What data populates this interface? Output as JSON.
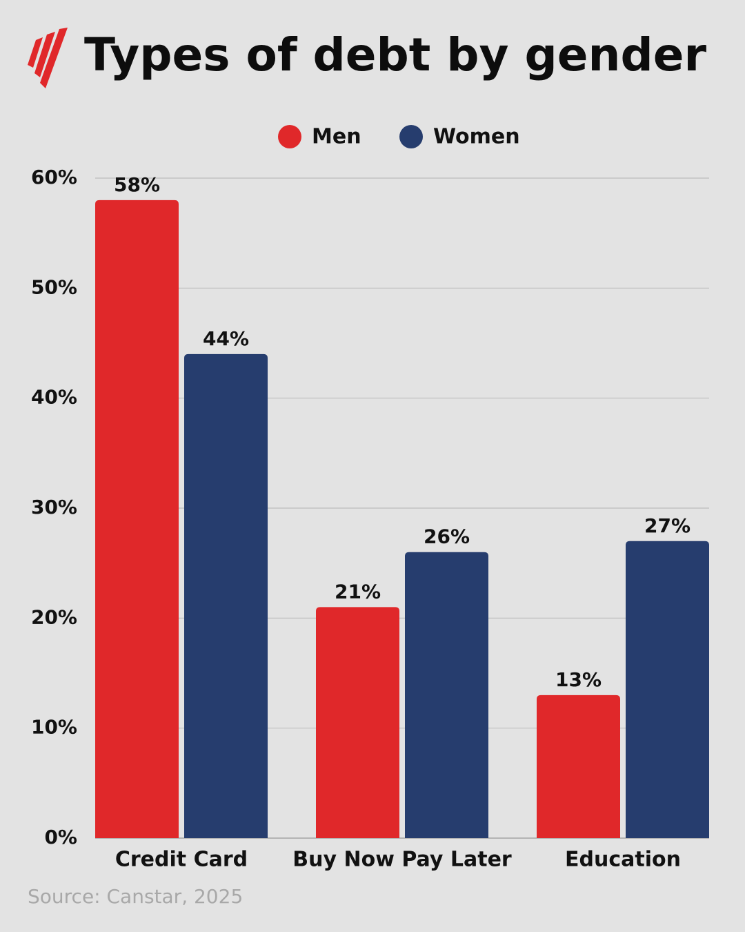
{
  "chart_data": {
    "type": "bar",
    "title": "Types of debt by gender",
    "categories": [
      "Credit Card",
      "Buy Now Pay Later",
      "Education"
    ],
    "series": [
      {
        "name": "Men",
        "color": "#e0282a",
        "values": [
          58,
          21,
          13
        ],
        "value_labels": [
          "58%",
          "21%",
          "13%"
        ]
      },
      {
        "name": "Women",
        "color": "#263d6e",
        "values": [
          44,
          26,
          27
        ],
        "value_labels": [
          "44%",
          "26%",
          "27%"
        ]
      }
    ],
    "ylim": [
      0,
      60
    ],
    "yticks": [
      {
        "value": 0,
        "label": "0%"
      },
      {
        "value": 10,
        "label": "10%"
      },
      {
        "value": 20,
        "label": "20%"
      },
      {
        "value": 30,
        "label": "30%"
      },
      {
        "value": 40,
        "label": "40%"
      },
      {
        "value": 50,
        "label": "50%"
      },
      {
        "value": 60,
        "label": "60%"
      }
    ],
    "grid": true,
    "source": "Source: Canstar, 2025"
  }
}
